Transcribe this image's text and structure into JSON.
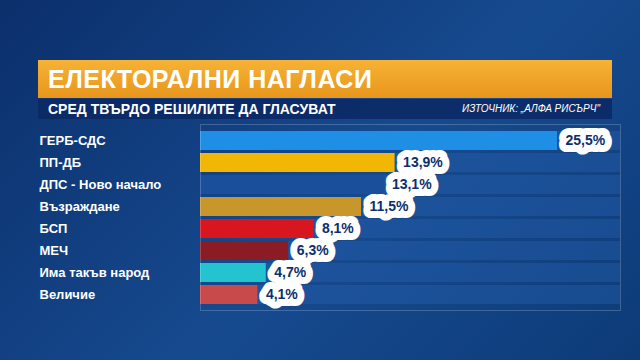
{
  "chart_data": {
    "type": "bar",
    "title": "ЕЛЕКТОРАЛНИ НАГЛАСИ",
    "subtitle": "СРЕД ТВЪРДО РЕШИЛИТЕ ДА ГЛАСУВАТ",
    "source": "ИЗТОЧНИК: „АЛФА РИСЪРЧ\"",
    "orientation": "horizontal",
    "categories": [
      "ГЕРБ-СДС",
      "ПП-ДБ",
      "ДПС - Ново начало",
      "Възраждане",
      "БСП",
      "МЕЧ",
      "Има такъв народ",
      "Величие"
    ],
    "values": [
      25.5,
      13.9,
      13.1,
      11.5,
      8.1,
      6.3,
      4.7,
      4.1
    ],
    "value_labels": [
      "25,5%",
      "13,9%",
      "13,1%",
      "11,5%",
      "8,1%",
      "6,3%",
      "4,7%",
      "4,1%"
    ],
    "colors": [
      "#1f8fe6",
      "#f2b705",
      "#1a4f9c",
      "#c8962a",
      "#d7161f",
      "#8b1c24",
      "#24c3d0",
      "#c94a4a"
    ],
    "xlim": [
      0,
      30
    ],
    "data_labels": true,
    "tick_labels": "y",
    "grid": false
  }
}
